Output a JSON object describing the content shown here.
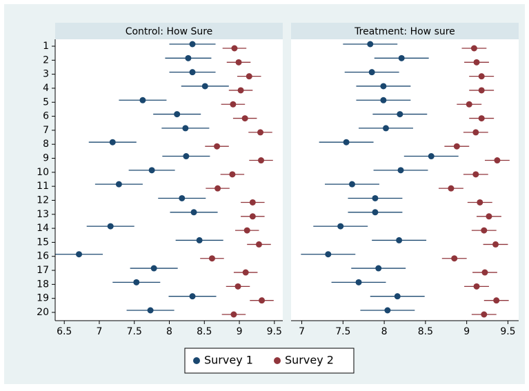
{
  "chart_data": [
    {
      "type": "dotplot",
      "title": "Control: How Sure",
      "categories": [
        "1",
        "2",
        "3",
        "4",
        "5",
        "6",
        "7",
        "8",
        "9",
        "10",
        "11",
        "12",
        "13",
        "14",
        "15",
        "16",
        "17",
        "18",
        "19",
        "20"
      ],
      "series": [
        {
          "name": "Survey 1",
          "color": "#1a476f",
          "values": [
            8.33,
            8.27,
            8.33,
            8.51,
            7.62,
            8.11,
            8.23,
            7.19,
            8.24,
            7.75,
            7.28,
            8.18,
            8.35,
            7.16,
            8.43,
            6.71,
            7.78,
            7.53,
            8.33,
            7.73
          ],
          "errors": [
            0.33,
            0.33,
            0.33,
            0.34,
            0.34,
            0.34,
            0.34,
            0.34,
            0.34,
            0.33,
            0.34,
            0.34,
            0.34,
            0.34,
            0.34,
            0.34,
            0.34,
            0.34,
            0.34,
            0.34
          ]
        },
        {
          "name": "Survey 2",
          "color": "#90353b",
          "values": [
            8.93,
            8.99,
            9.14,
            9.02,
            8.91,
            9.08,
            9.3,
            8.68,
            9.31,
            8.9,
            8.69,
            9.19,
            9.19,
            9.11,
            9.28,
            8.61,
            9.09,
            8.98,
            9.32,
            8.92
          ],
          "errors": [
            0.17,
            0.17,
            0.17,
            0.17,
            0.17,
            0.17,
            0.17,
            0.17,
            0.17,
            0.17,
            0.17,
            0.17,
            0.17,
            0.17,
            0.17,
            0.17,
            0.17,
            0.17,
            0.17,
            0.17
          ]
        }
      ],
      "xlim": [
        6.37,
        9.62
      ],
      "xticks": [
        6.5,
        7,
        7.5,
        8,
        8.5,
        9,
        9.5
      ]
    },
    {
      "type": "dotplot",
      "title": "Treatment: How sure",
      "series": [
        {
          "color": "#1a476f",
          "values": [
            7.83,
            8.21,
            7.85,
            7.99,
            7.99,
            8.19,
            8.02,
            7.54,
            8.57,
            8.2,
            7.61,
            7.89,
            7.89,
            7.47,
            8.18,
            7.32,
            7.93,
            7.69,
            8.16,
            8.04
          ],
          "errors": [
            0.33,
            0.33,
            0.33,
            0.33,
            0.33,
            0.33,
            0.33,
            0.33,
            0.33,
            0.33,
            0.33,
            0.33,
            0.33,
            0.33,
            0.33,
            0.33,
            0.33,
            0.33,
            0.33,
            0.33
          ]
        },
        {
          "color": "#90353b",
          "values": [
            9.09,
            9.12,
            9.18,
            9.18,
            9.03,
            9.18,
            9.11,
            8.88,
            9.37,
            9.11,
            8.81,
            9.16,
            9.27,
            9.21,
            9.35,
            8.85,
            9.22,
            9.12,
            9.36,
            9.21
          ],
          "errors": [
            0.15,
            0.15,
            0.15,
            0.15,
            0.15,
            0.15,
            0.15,
            0.15,
            0.15,
            0.15,
            0.15,
            0.15,
            0.15,
            0.15,
            0.15,
            0.15,
            0.15,
            0.15,
            0.15,
            0.15
          ]
        }
      ],
      "xlim": [
        6.87,
        9.63
      ],
      "xticks": [
        7,
        7.5,
        8,
        8.5,
        9,
        9.5
      ]
    }
  ]
}
